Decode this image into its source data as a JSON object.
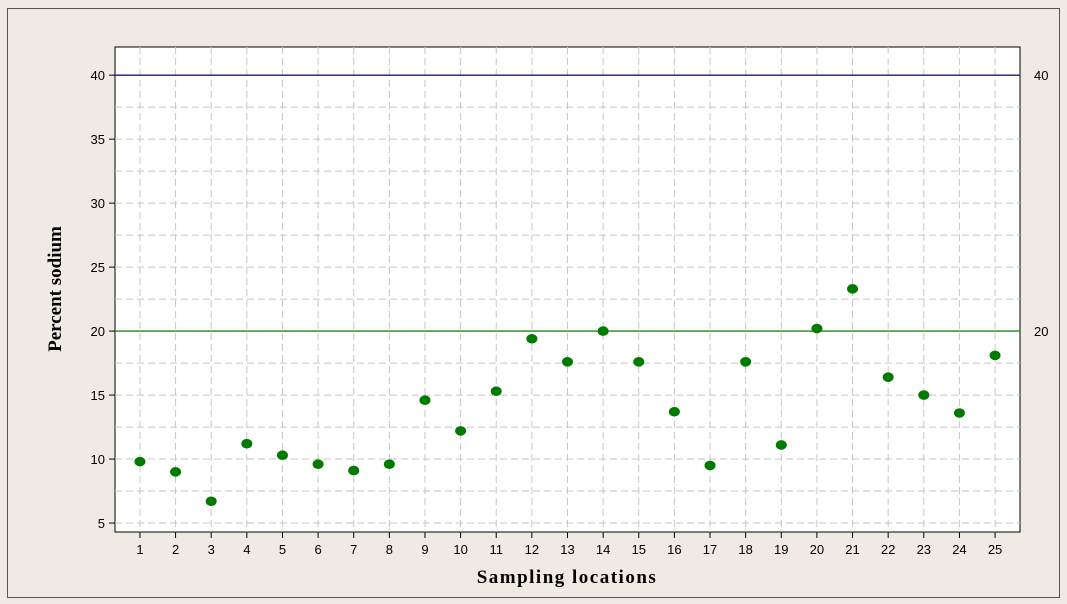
{
  "chart_data": {
    "type": "scatter",
    "xlabel": "Sampling locations",
    "ylabel": "Percent sodium",
    "x": [
      1,
      2,
      3,
      4,
      5,
      6,
      7,
      8,
      9,
      10,
      11,
      12,
      13,
      14,
      15,
      16,
      17,
      18,
      19,
      20,
      21,
      22,
      23,
      24,
      25
    ],
    "series": [
      {
        "values": [
          9.8,
          9.0,
          6.7,
          11.2,
          10.3,
          9.6,
          9.1,
          9.6,
          14.6,
          12.2,
          15.3,
          19.4,
          17.6,
          20.0,
          17.6,
          13.7,
          9.5,
          17.6,
          11.1,
          20.2,
          23.3,
          16.4,
          15.0,
          13.6,
          18.1
        ],
        "color": "#007a00"
      }
    ],
    "xlim": [
      0.3,
      25.7
    ],
    "ylim": [
      4.3,
      42.2
    ],
    "yticks": [
      5,
      10,
      15,
      20,
      25,
      30,
      35,
      40
    ],
    "xticks": [
      "1",
      "2",
      "3",
      "4",
      "5",
      "6",
      "7",
      "8",
      "9",
      "10",
      "11",
      "12",
      "13",
      "14",
      "15",
      "16",
      "17",
      "18",
      "19",
      "20",
      "21",
      "22",
      "23",
      "24",
      "25"
    ],
    "reference_lines": [
      {
        "value": 40,
        "label": "40",
        "color": "#1c1c7a"
      },
      {
        "value": 20,
        "label": "20",
        "color": "#1f8a1f"
      }
    ],
    "grid": true
  }
}
